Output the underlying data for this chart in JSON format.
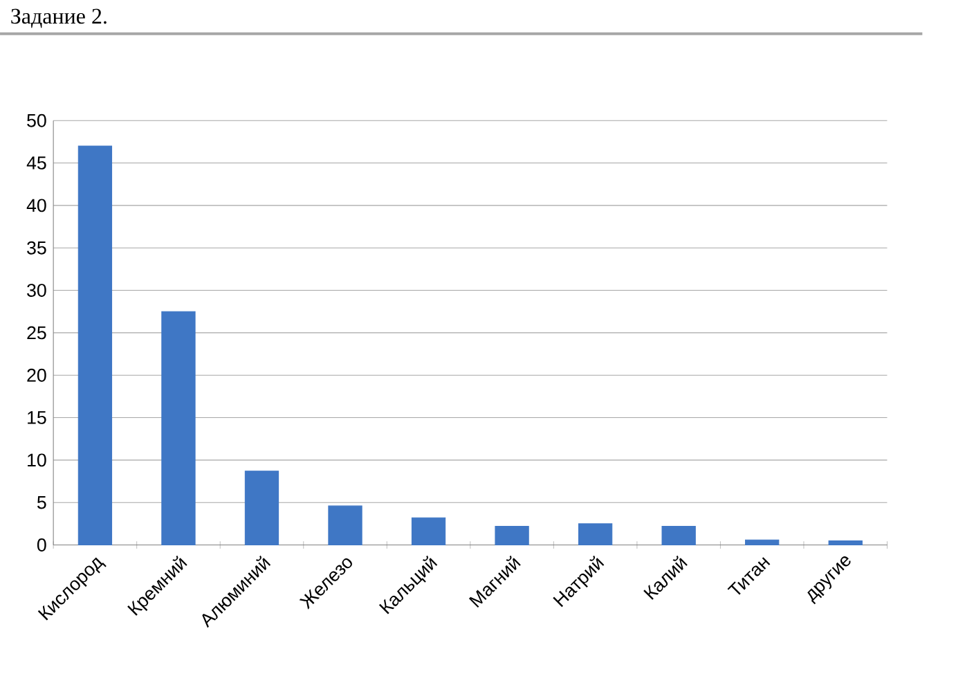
{
  "chart_data": {
    "type": "bar",
    "title": "Задание 2.",
    "categories": [
      "Кислород",
      "Кремний",
      "Алюминий",
      "Железо",
      "Кальций",
      "Магний",
      "Натрий",
      "Калий",
      "Титан",
      "другие"
    ],
    "values": [
      47,
      27.5,
      8.7,
      4.6,
      3.2,
      2.2,
      2.5,
      2.2,
      0.6,
      0.5
    ],
    "color": "#3f77c5",
    "ylim": [
      0,
      50
    ],
    "yticks": [
      0,
      5,
      10,
      15,
      20,
      25,
      30,
      35,
      40,
      45,
      50
    ],
    "grid": "y"
  }
}
